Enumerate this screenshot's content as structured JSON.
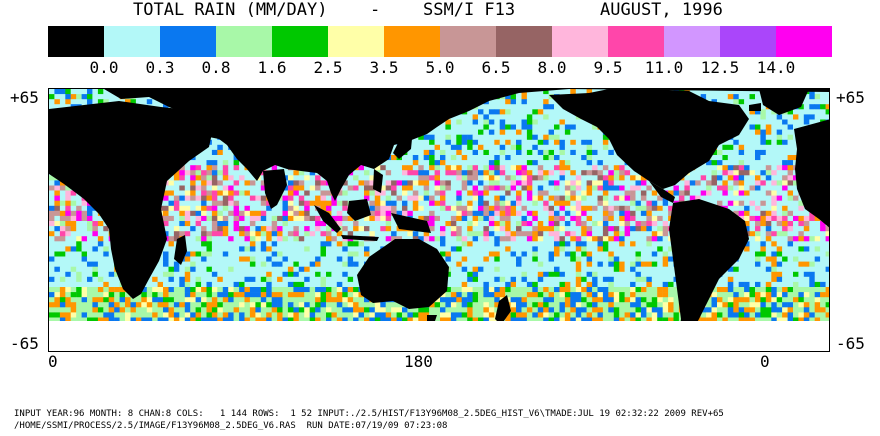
{
  "header": {
    "title": "TOTAL RAIN (MM/DAY)",
    "separator": "-",
    "instrument": "SSM/I F13",
    "period": "AUGUST, 1996"
  },
  "legend": {
    "colors": [
      "#000000",
      "#b3f8f8",
      "#0a78f0",
      "#a8f8a8",
      "#00c800",
      "#ffffa8",
      "#ff9600",
      "#c89696",
      "#966464",
      "#ffb6dc",
      "#ff46aa",
      "#d296ff",
      "#aa46fa",
      "#ff00f0"
    ],
    "labels": [
      "0.0",
      "0.3",
      "0.8",
      "1.6",
      "2.5",
      "3.5",
      "5.0",
      "6.5",
      "8.0",
      "9.5",
      "11.0",
      "12.5",
      "14.0"
    ]
  },
  "axes": {
    "lat_top_left": "+65",
    "lat_top_right": "+65",
    "lat_bottom_left": "-65",
    "lat_bottom_right": "-65",
    "lon_left": "0",
    "lon_center": "180",
    "lon_right": "0"
  },
  "footer": {
    "line1": "INPUT YEAR:96 MONTH: 8 CHAN:8 COLS:   1 144 ROWS:  1 52 INPUT:./2.5/HIST/F13Y96M08_2.5DEG_HIST_V6\\TMADE:JUL 19 02:32:22 2009 REV+65",
    "line2": "/HOME/SSMI/PROCESS/2.5/IMAGE/F13Y96M08_2.5DEG_V6.RAS  RUN DATE:07/19/09 07:23:08"
  }
}
